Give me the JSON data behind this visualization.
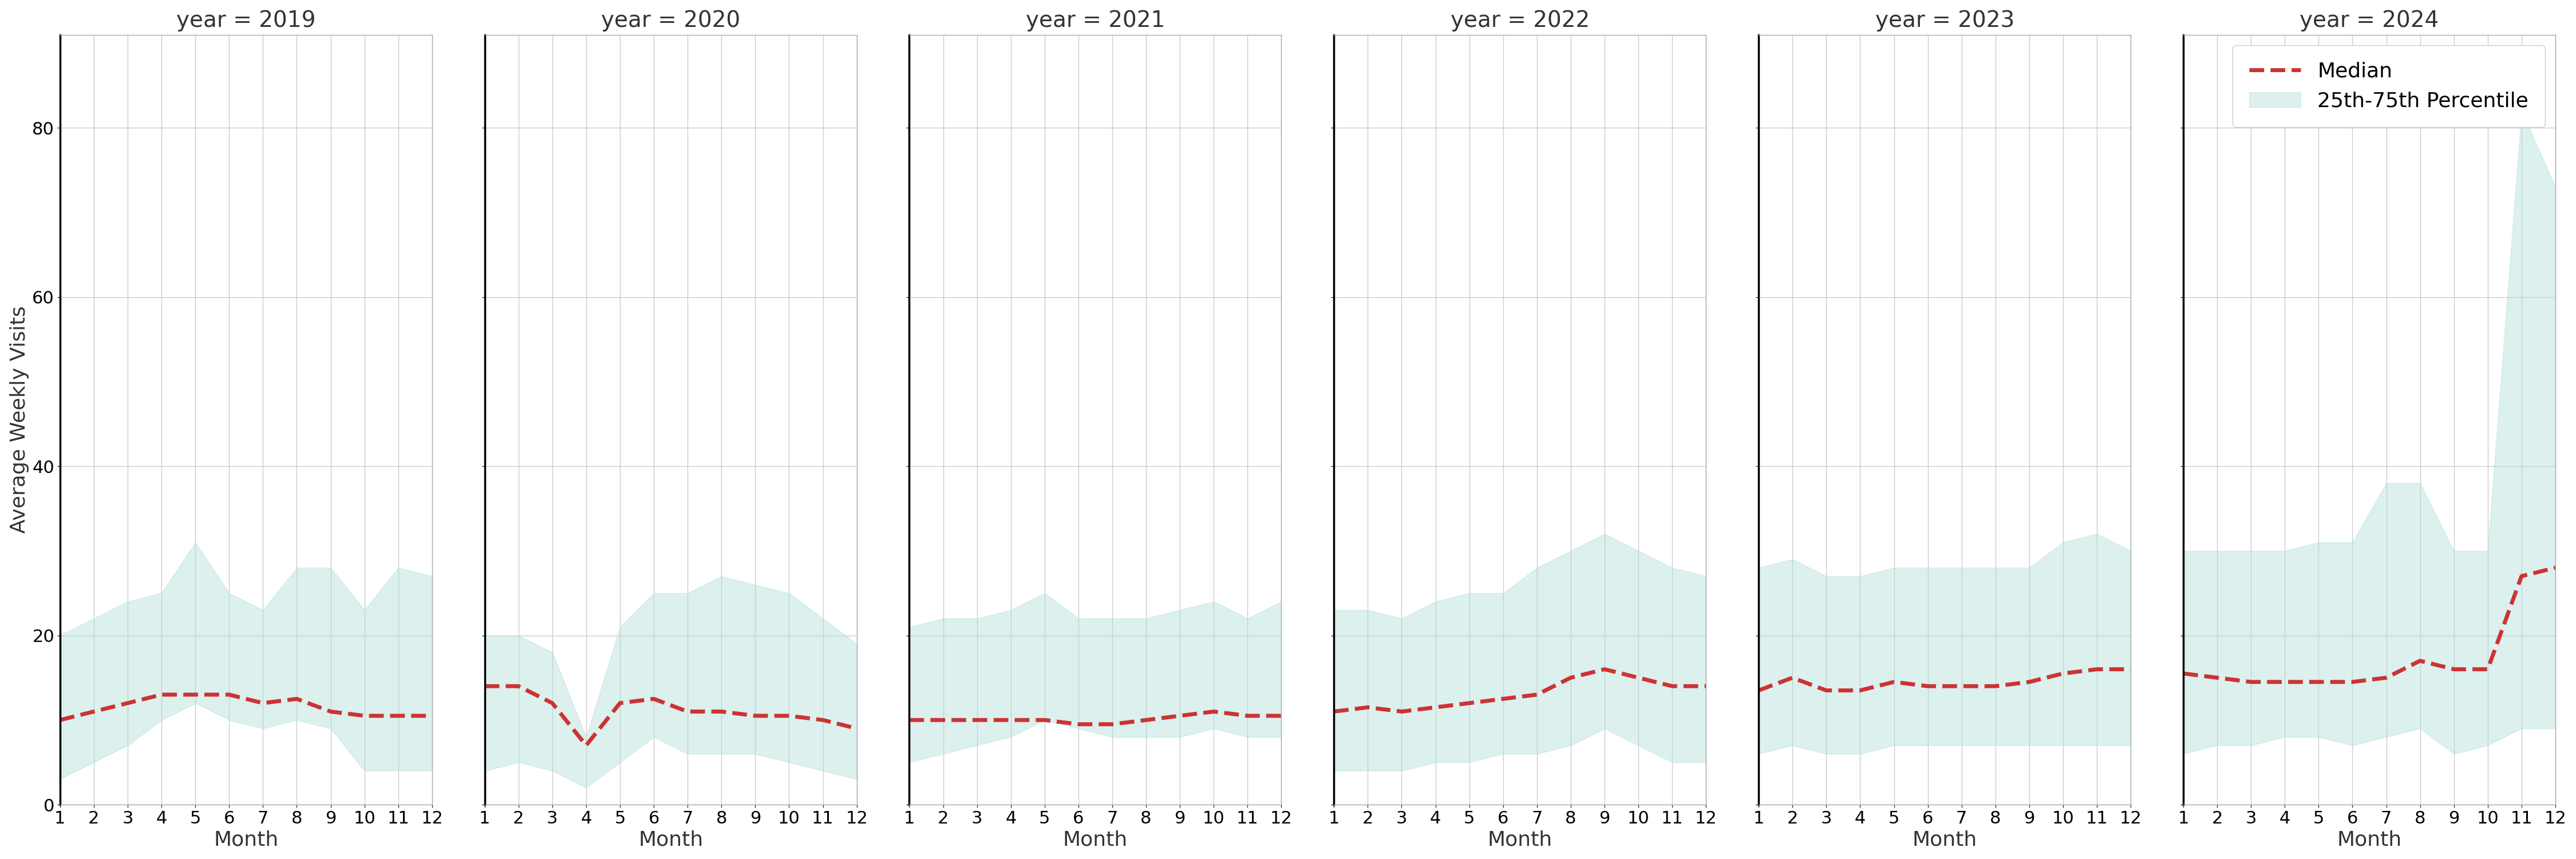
{
  "years": [
    2019,
    2020,
    2021,
    2022,
    2023,
    2024
  ],
  "months": [
    1,
    2,
    3,
    4,
    5,
    6,
    7,
    8,
    9,
    10,
    11,
    12
  ],
  "median": {
    "2019": [
      10,
      11,
      12,
      13,
      13,
      13,
      12,
      12.5,
      11,
      10.5,
      10.5,
      10.5
    ],
    "2020": [
      14,
      14,
      12,
      7,
      12,
      12.5,
      11,
      11,
      10.5,
      10.5,
      10,
      9
    ],
    "2021": [
      10,
      10,
      10,
      10,
      10,
      9.5,
      9.5,
      10,
      10.5,
      11,
      10.5,
      10.5
    ],
    "2022": [
      11,
      11.5,
      11,
      11.5,
      12,
      12.5,
      13,
      15,
      16,
      15,
      14,
      14
    ],
    "2023": [
      13.5,
      15,
      13.5,
      13.5,
      14.5,
      14,
      14,
      14,
      14.5,
      15.5,
      16,
      16
    ],
    "2024": [
      15.5,
      15,
      14.5,
      14.5,
      14.5,
      14.5,
      15,
      17,
      16,
      16,
      27,
      28
    ]
  },
  "p25": {
    "2019": [
      3,
      5,
      7,
      10,
      12,
      10,
      9,
      10,
      9,
      4,
      4,
      4
    ],
    "2020": [
      4,
      5,
      4,
      2,
      5,
      8,
      6,
      6,
      6,
      5,
      4,
      3
    ],
    "2021": [
      5,
      6,
      7,
      8,
      10,
      9,
      8,
      8,
      8,
      9,
      8,
      8
    ],
    "2022": [
      4,
      4,
      4,
      5,
      5,
      6,
      6,
      7,
      9,
      7,
      5,
      5
    ],
    "2023": [
      6,
      7,
      6,
      6,
      7,
      7,
      7,
      7,
      7,
      7,
      7,
      7
    ],
    "2024": [
      6,
      7,
      7,
      8,
      8,
      7,
      8,
      9,
      6,
      7,
      9,
      9
    ]
  },
  "p75": {
    "2019": [
      20,
      22,
      24,
      25,
      31,
      25,
      23,
      28,
      28,
      23,
      28,
      27
    ],
    "2020": [
      20,
      20,
      18,
      8,
      21,
      25,
      25,
      27,
      26,
      25,
      22,
      19
    ],
    "2021": [
      21,
      22,
      22,
      23,
      25,
      22,
      22,
      22,
      23,
      24,
      22,
      24
    ],
    "2022": [
      23,
      23,
      22,
      24,
      25,
      25,
      28,
      30,
      32,
      30,
      28,
      27
    ],
    "2023": [
      28,
      29,
      27,
      27,
      28,
      28,
      28,
      28,
      28,
      31,
      32,
      30
    ],
    "2024": [
      30,
      30,
      30,
      30,
      31,
      31,
      38,
      38,
      30,
      30,
      82,
      73
    ]
  },
  "ylim": [
    0,
    91
  ],
  "yticks": [
    0,
    20,
    40,
    60,
    80
  ],
  "xlabel": "Month",
  "ylabel": "Average Weekly Visits",
  "fill_color": "#b2dfdb",
  "fill_alpha": 0.45,
  "line_color": "#cc3333",
  "line_style": "--",
  "line_width": 5,
  "bg_color": "#ffffff",
  "grid_color": "#cccccc",
  "title_fontsize": 28,
  "label_fontsize": 26,
  "tick_fontsize": 22,
  "legend_fontsize": 26
}
